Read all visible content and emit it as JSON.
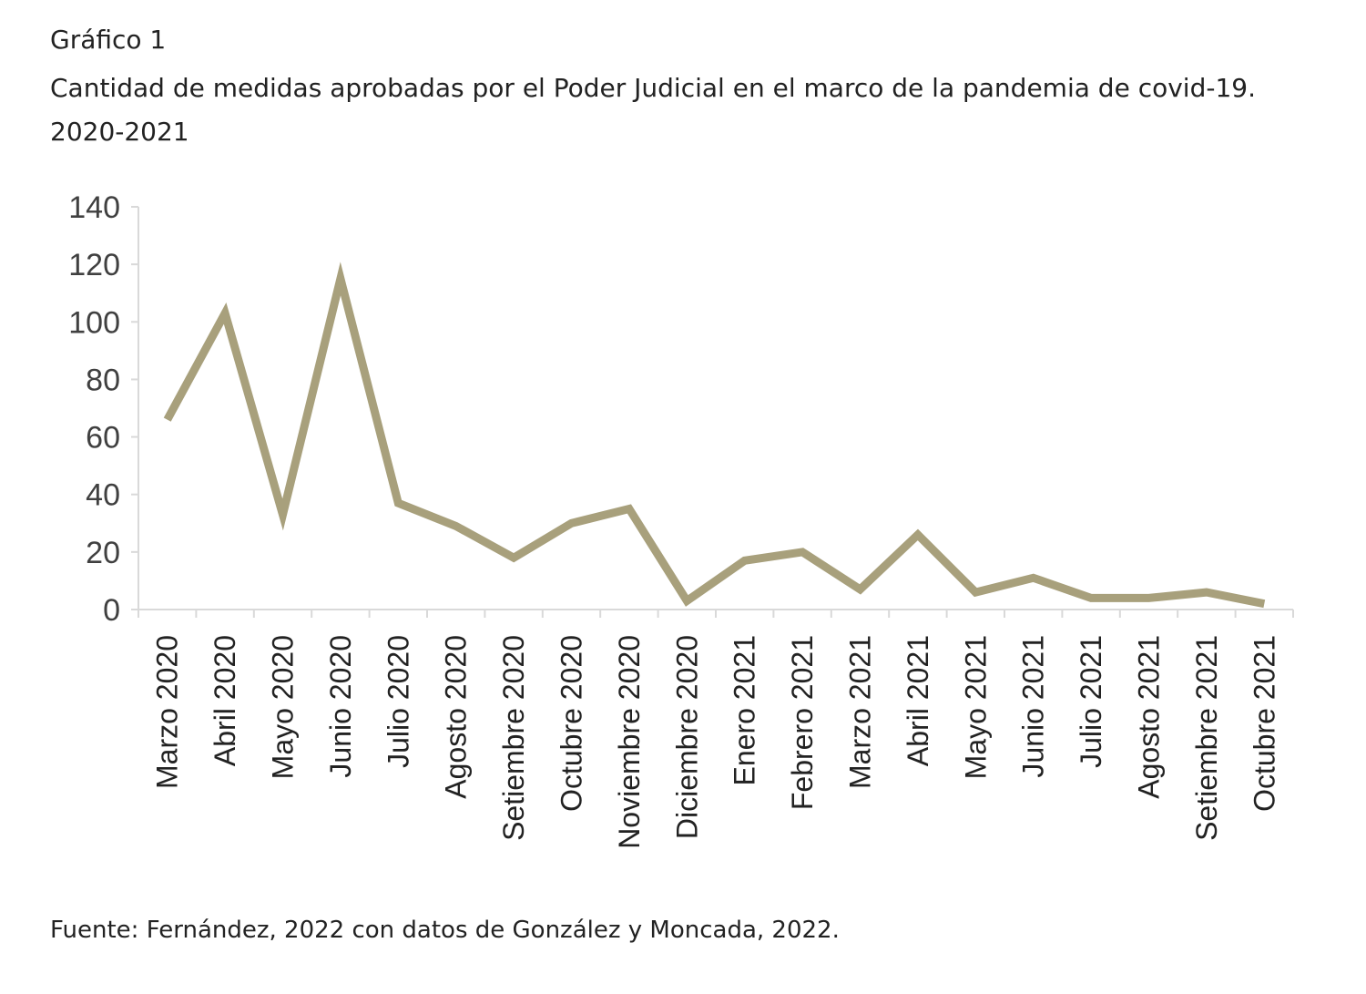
{
  "figure_label": "Gráfico 1",
  "title": "Cantidad de medidas aprobadas por el Poder Judicial en el marco de la pandemia de covid-19. 2020-2021",
  "source": "Fuente: Fernández, 2022 con datos de González y Moncada, 2022.",
  "colors": {
    "line": "#a8a07c",
    "axis": "#d9d9d9"
  },
  "chart_data": {
    "type": "line",
    "categories": [
      "Marzo 2020",
      "Abril 2020",
      "Mayo 2020",
      "Junio 2020",
      "Julio 2020",
      "Agosto 2020",
      "Setiembre 2020",
      "Octubre 2020",
      "Noviembre 2020",
      "Diciembre 2020",
      "Enero 2021",
      "Febrero 2021",
      "Marzo 2021",
      "Abril 2021",
      "Mayo 2021",
      "Junio 2021",
      "Julio 2021",
      "Agosto 2021",
      "Setiembre 2021",
      "Octubre 2021"
    ],
    "series": [
      {
        "values": [
          66,
          103,
          33,
          115,
          37,
          29,
          18,
          30,
          35,
          3,
          17,
          20,
          7,
          26,
          6,
          11,
          4,
          4,
          6,
          2
        ]
      }
    ],
    "ylim": [
      0,
      140
    ],
    "yticks": [
      0,
      20,
      40,
      60,
      80,
      100,
      120,
      140
    ],
    "grid": false,
    "legend": "none"
  }
}
